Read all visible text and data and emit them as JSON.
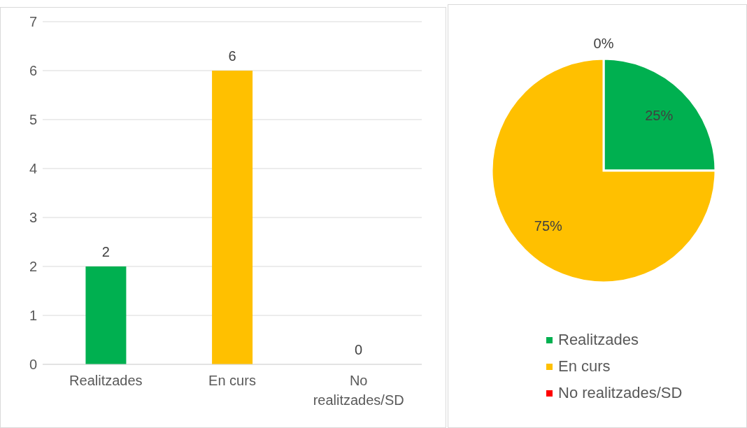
{
  "chart_data": [
    {
      "type": "bar",
      "categories": [
        "Realitzades",
        "En curs",
        "No realitzades/SD"
      ],
      "values": [
        2,
        6,
        0
      ],
      "colors": [
        "#00b050",
        "#ffc000",
        "#ff0000"
      ],
      "ylim": [
        0,
        7
      ],
      "yticks": [
        0,
        1,
        2,
        3,
        4,
        5,
        6,
        7
      ],
      "grid": "y",
      "data_labels": true
    },
    {
      "type": "pie",
      "categories": [
        "Realitzades",
        "En curs",
        "No realitzades/SD"
      ],
      "values": [
        25,
        75,
        0
      ],
      "colors": [
        "#00b050",
        "#ffc000",
        "#ff0000"
      ],
      "value_labels": [
        "25%",
        "75%",
        "0%"
      ],
      "legend": "bottom"
    }
  ]
}
